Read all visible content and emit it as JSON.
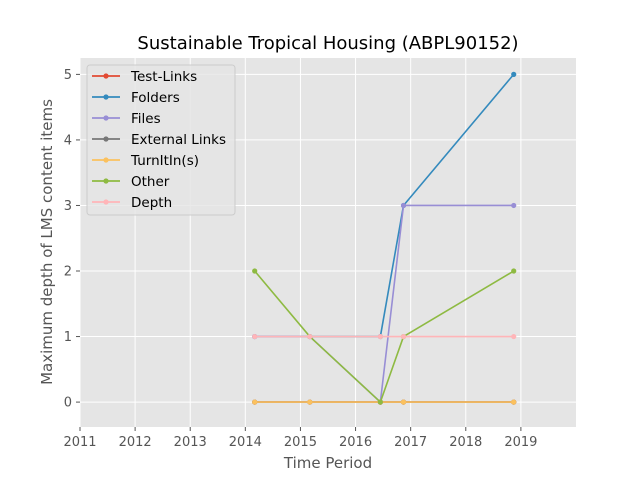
{
  "chart_data": {
    "type": "line",
    "title": "Sustainable Tropical Housing (ABPL90152)",
    "xlabel": "Time Period",
    "ylabel": "Maximum depth of LMS content items",
    "xlim": [
      2011,
      2020
    ],
    "ylim": [
      -0.38,
      5.25
    ],
    "x_ticks": [
      2011,
      2012,
      2013,
      2014,
      2015,
      2016,
      2017,
      2018,
      2019
    ],
    "y_ticks": [
      0,
      1,
      2,
      3,
      4,
      5
    ],
    "grid": true,
    "legend_position": "top-left",
    "x": [
      2014.17,
      2015.17,
      2016.45,
      2016.87,
      2018.87
    ],
    "series": [
      {
        "name": "Test-Links",
        "color": "#E24A33",
        "values": [
          0,
          0,
          0,
          0,
          0
        ]
      },
      {
        "name": "Folders",
        "color": "#348ABD",
        "values": [
          1,
          1,
          1,
          3,
          5
        ]
      },
      {
        "name": "Files",
        "color": "#988ED5",
        "values": [
          1,
          1,
          0,
          3,
          3
        ]
      },
      {
        "name": "External Links",
        "color": "#777777",
        "values": [
          0,
          0,
          0,
          0,
          0
        ]
      },
      {
        "name": "TurnItIn(s)",
        "color": "#FBC15E",
        "values": [
          0,
          0,
          0,
          0,
          0
        ]
      },
      {
        "name": "Other",
        "color": "#8EBA42",
        "values": [
          2,
          1,
          0,
          1,
          2
        ]
      },
      {
        "name": "Depth",
        "color": "#FFB5B8",
        "values": [
          1,
          1,
          1,
          1,
          1
        ]
      }
    ]
  }
}
